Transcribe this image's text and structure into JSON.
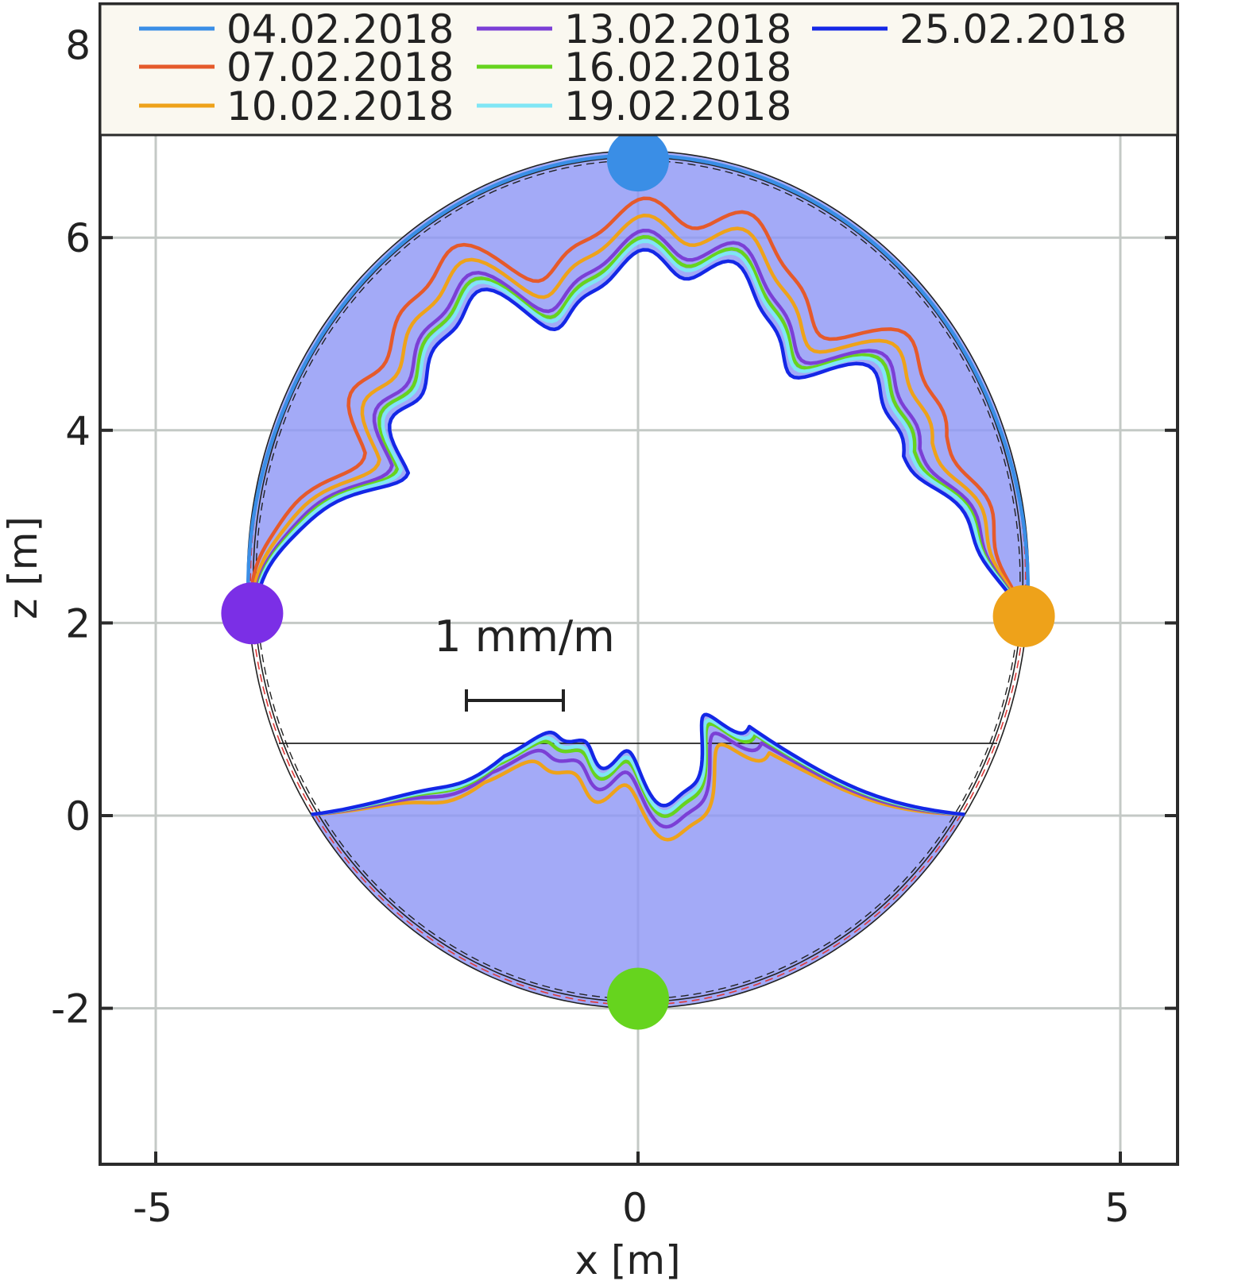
{
  "chart_data": {
    "type": "line",
    "xlabel": "x [m]",
    "ylabel": "z [m]",
    "xlim": [
      -5.6,
      5.6
    ],
    "ylim": [
      -3.6,
      8.5
    ],
    "xticks": [
      -5,
      0,
      5
    ],
    "yticks": [
      -2,
      0,
      2,
      4,
      6,
      8
    ],
    "xtick_labels": [
      "-5",
      "0",
      "5"
    ],
    "ytick_labels": [
      "-2",
      "0",
      "2",
      "4",
      "6",
      "8"
    ],
    "grid": true,
    "legend_position": "top",
    "scale_bar_label": "1 mm/m",
    "tunnel": {
      "center": [
        0.0,
        2.45
      ],
      "radius_x": 4.05,
      "radius_z": 4.45,
      "invert_top_z": 0.75
    },
    "series": [
      {
        "name": "04.02.2018",
        "color": "#3a8ee6"
      },
      {
        "name": "07.02.2018",
        "color": "#e55a2b"
      },
      {
        "name": "10.02.2018",
        "color": "#eea21a"
      },
      {
        "name": "13.02.2018",
        "color": "#7b3fd6"
      },
      {
        "name": "16.02.2018",
        "color": "#66d41e"
      },
      {
        "name": "19.02.2018",
        "color": "#7fe6f5"
      },
      {
        "name": "25.02.2018",
        "color": "#1427e6"
      }
    ],
    "sensor_points": [
      {
        "x": 0.0,
        "z": 6.8,
        "color": "#3a8ee6"
      },
      {
        "x": -4.0,
        "z": 2.1,
        "color": "#7b2fe6"
      },
      {
        "x": 4.0,
        "z": 2.07,
        "color": "#eea21a"
      },
      {
        "x": 0.0,
        "z": -1.9,
        "color": "#66d41e"
      }
    ]
  }
}
